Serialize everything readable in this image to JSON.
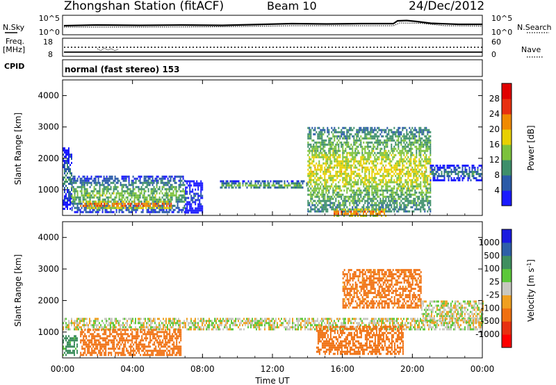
{
  "header": {
    "station_title": "Zhongshan Station (fitACF)",
    "beam": "Beam 10",
    "date": "24/Dec/2012"
  },
  "noise_panel": {
    "left_label": "N.Sky",
    "right_label": "N.Search",
    "left_ticks": [
      "10^5",
      "10^0"
    ],
    "right_ticks": [
      "10^5",
      "10^0"
    ]
  },
  "freq_panel": {
    "left_label_1": "Freq.",
    "left_label_2": "[MHz]",
    "right_label": "Nave",
    "left_ticks": [
      "18",
      "8"
    ],
    "right_ticks": [
      "60",
      "0"
    ]
  },
  "cpid": {
    "label": "CPID",
    "value": "normal (fast stereo) 153"
  },
  "power_colorbar": {
    "label": "Power [dB]",
    "ticks": [
      "4",
      "8",
      "12",
      "16",
      "20",
      "24",
      "28"
    ],
    "colors": [
      "#1a1aff",
      "#2a5aa8",
      "#3e8f6a",
      "#7cc23c",
      "#e8d000",
      "#f08a00",
      "#e83010",
      "#e00000"
    ]
  },
  "velocity_colorbar": {
    "label": "Velocity [m s",
    "label_sup": "-1",
    "label_close": "]",
    "ticks": [
      "1000",
      "500",
      "100",
      "25",
      "-25",
      "-100",
      "-500",
      "-1000"
    ],
    "colors": [
      "#1a1ae0",
      "#2e5fa8",
      "#3f8f5f",
      "#5cc83a",
      "#c8c8c0",
      "#f0a020",
      "#f07010",
      "#e83010",
      "#ff0000"
    ]
  },
  "chart_data": [
    {
      "type": "heatmap",
      "title": "Power",
      "ylabel": "Slant Range [km]",
      "ylim": [
        180,
        4500
      ],
      "yticks": [
        1000,
        2000,
        3000,
        4000
      ],
      "xlim": [
        0,
        24
      ],
      "colorbar": "Power [dB]",
      "echo_regions": [
        {
          "t": [
            0.0,
            0.5
          ],
          "r": [
            400,
            2350
          ],
          "level": 12
        },
        {
          "t": [
            0.5,
            7.0
          ],
          "r": [
            300,
            1450
          ],
          "level": 16
        },
        {
          "t": [
            1.0,
            6.2
          ],
          "r": [
            450,
            650
          ],
          "level": 28
        },
        {
          "t": [
            7.0,
            8.0
          ],
          "r": [
            300,
            1300
          ],
          "level": 8
        },
        {
          "t": [
            9.0,
            14.0
          ],
          "r": [
            1050,
            1300
          ],
          "level": 16
        },
        {
          "t": [
            14.0,
            21.0
          ],
          "r": [
            300,
            3000
          ],
          "level": 20
        },
        {
          "t": [
            15.5,
            18.5
          ],
          "r": [
            200,
            400
          ],
          "level": 28
        },
        {
          "t": [
            21.0,
            24.0
          ],
          "r": [
            1300,
            1800
          ],
          "level": 12
        }
      ]
    },
    {
      "type": "heatmap",
      "title": "Velocity",
      "ylabel": "Slant Range [km]",
      "ylim": [
        180,
        4500
      ],
      "yticks": [
        1000,
        2000,
        3000,
        4000
      ],
      "xlim": [
        0,
        24
      ],
      "xticks": [
        "00:00",
        "04:00",
        "08:00",
        "12:00",
        "16:00",
        "20:00",
        "00:00"
      ],
      "xlabel": "Time UT",
      "colorbar": "Velocity [m s-1]",
      "echo_regions": [
        {
          "t": [
            0.0,
            0.8
          ],
          "r": [
            300,
            900
          ],
          "velocity": 100
        },
        {
          "t": [
            0.0,
            24.0
          ],
          "r": [
            1100,
            1450
          ],
          "velocity": 0
        },
        {
          "t": [
            1.0,
            6.8
          ],
          "r": [
            300,
            1100
          ],
          "velocity": -200
        },
        {
          "t": [
            14.5,
            19.5
          ],
          "r": [
            300,
            1200
          ],
          "velocity": -300
        },
        {
          "t": [
            16.0,
            20.5
          ],
          "r": [
            1800,
            3000
          ],
          "velocity": -150
        },
        {
          "t": [
            20.5,
            24.0
          ],
          "r": [
            1300,
            2000
          ],
          "velocity": 0
        }
      ]
    }
  ]
}
